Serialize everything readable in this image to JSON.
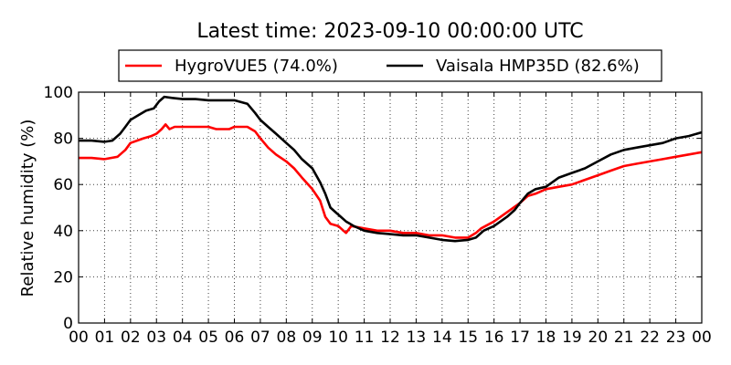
{
  "chart_data": {
    "type": "line",
    "title": "Latest time: 2023-09-10 00:00:00 UTC",
    "xlabel": "",
    "ylabel": "Relative humidity (%)",
    "xlim": [
      0,
      24
    ],
    "ylim": [
      0,
      100
    ],
    "x_ticks": [
      0,
      1,
      2,
      3,
      4,
      5,
      6,
      7,
      8,
      9,
      10,
      11,
      12,
      13,
      14,
      15,
      16,
      17,
      18,
      19,
      20,
      21,
      22,
      23,
      24
    ],
    "x_tick_labels": [
      "00",
      "01",
      "02",
      "03",
      "04",
      "05",
      "06",
      "07",
      "08",
      "09",
      "10",
      "11",
      "12",
      "13",
      "14",
      "15",
      "16",
      "17",
      "18",
      "19",
      "20",
      "21",
      "22",
      "23",
      "00"
    ],
    "y_ticks": [
      0,
      20,
      40,
      60,
      80,
      100
    ],
    "y_tick_labels": [
      "0",
      "20",
      "40",
      "60",
      "80",
      "100"
    ],
    "grid": true,
    "legend_position": "top-center",
    "series": [
      {
        "name": "HygroVUE5 (74.0%)",
        "color": "#ff0000",
        "points": [
          [
            0,
            71.5
          ],
          [
            0.5,
            71.5
          ],
          [
            1,
            71
          ],
          [
            1.5,
            72
          ],
          [
            1.8,
            75
          ],
          [
            2,
            78
          ],
          [
            2.5,
            80
          ],
          [
            2.8,
            81
          ],
          [
            3,
            82
          ],
          [
            3.2,
            84
          ],
          [
            3.35,
            86
          ],
          [
            3.5,
            84
          ],
          [
            3.7,
            85
          ],
          [
            4,
            85
          ],
          [
            4.5,
            85
          ],
          [
            5,
            85
          ],
          [
            5.3,
            84
          ],
          [
            5.8,
            84
          ],
          [
            6,
            85
          ],
          [
            6.5,
            85
          ],
          [
            6.8,
            83
          ],
          [
            7,
            80
          ],
          [
            7.3,
            76
          ],
          [
            7.6,
            73
          ],
          [
            8,
            70
          ],
          [
            8.3,
            67
          ],
          [
            8.6,
            63
          ],
          [
            9,
            58
          ],
          [
            9.3,
            53
          ],
          [
            9.5,
            46
          ],
          [
            9.7,
            43
          ],
          [
            10,
            42
          ],
          [
            10.3,
            39
          ],
          [
            10.5,
            42
          ],
          [
            11,
            41
          ],
          [
            11.5,
            40
          ],
          [
            12,
            40
          ],
          [
            12.5,
            39
          ],
          [
            13,
            39
          ],
          [
            13.5,
            38
          ],
          [
            14,
            38
          ],
          [
            14.5,
            37
          ],
          [
            14.8,
            37
          ],
          [
            15,
            37
          ],
          [
            15.3,
            39
          ],
          [
            15.5,
            41
          ],
          [
            16,
            44
          ],
          [
            16.5,
            48
          ],
          [
            17,
            52
          ],
          [
            17.3,
            55
          ],
          [
            17.6,
            56
          ],
          [
            18,
            58
          ],
          [
            18.5,
            59
          ],
          [
            19,
            60
          ],
          [
            19.5,
            62
          ],
          [
            20,
            64
          ],
          [
            20.5,
            66
          ],
          [
            21,
            68
          ],
          [
            21.5,
            69
          ],
          [
            22,
            70
          ],
          [
            22.5,
            71
          ],
          [
            23,
            72
          ],
          [
            23.5,
            73
          ],
          [
            24,
            74
          ]
        ]
      },
      {
        "name": "Vaisala HMP35D (82.6%)",
        "color": "#000000",
        "points": [
          [
            0,
            79
          ],
          [
            0.5,
            79
          ],
          [
            1,
            78.5
          ],
          [
            1.3,
            79
          ],
          [
            1.6,
            82
          ],
          [
            1.8,
            85
          ],
          [
            2,
            88
          ],
          [
            2.3,
            90
          ],
          [
            2.6,
            92
          ],
          [
            2.9,
            93
          ],
          [
            3.1,
            96
          ],
          [
            3.3,
            98
          ],
          [
            3.6,
            97.5
          ],
          [
            4,
            97
          ],
          [
            4.5,
            97
          ],
          [
            5,
            96.5
          ],
          [
            5.5,
            96.5
          ],
          [
            6,
            96.5
          ],
          [
            6.5,
            95
          ],
          [
            6.8,
            91
          ],
          [
            7,
            88
          ],
          [
            7.3,
            85
          ],
          [
            7.6,
            82
          ],
          [
            8,
            78
          ],
          [
            8.3,
            75
          ],
          [
            8.6,
            71
          ],
          [
            9,
            67
          ],
          [
            9.3,
            61
          ],
          [
            9.5,
            56
          ],
          [
            9.7,
            50
          ],
          [
            9.9,
            48
          ],
          [
            10.1,
            46
          ],
          [
            10.3,
            44
          ],
          [
            10.6,
            42
          ],
          [
            11,
            40
          ],
          [
            11.5,
            39
          ],
          [
            12,
            38.5
          ],
          [
            12.5,
            38
          ],
          [
            13,
            38
          ],
          [
            13.5,
            37
          ],
          [
            14,
            36
          ],
          [
            14.5,
            35.5
          ],
          [
            15,
            36
          ],
          [
            15.3,
            37
          ],
          [
            15.6,
            40
          ],
          [
            16,
            42
          ],
          [
            16.5,
            46
          ],
          [
            16.8,
            49
          ],
          [
            17,
            52
          ],
          [
            17.3,
            56
          ],
          [
            17.6,
            58
          ],
          [
            18,
            59
          ],
          [
            18.5,
            63
          ],
          [
            19,
            65
          ],
          [
            19.5,
            67
          ],
          [
            20,
            70
          ],
          [
            20.5,
            73
          ],
          [
            21,
            75
          ],
          [
            21.5,
            76
          ],
          [
            22,
            77
          ],
          [
            22.5,
            78
          ],
          [
            23,
            80
          ],
          [
            23.5,
            81
          ],
          [
            24,
            82.6
          ]
        ]
      }
    ]
  }
}
